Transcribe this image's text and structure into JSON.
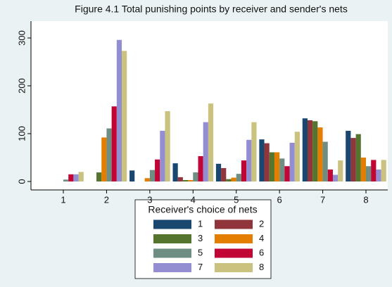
{
  "chart_data": {
    "type": "bar",
    "title": "Figure 4.1 Total punishing points by receiver and sender's nets",
    "categories": [
      "1",
      "2",
      "3",
      "4",
      "5",
      "6",
      "7",
      "8"
    ],
    "legend_title": "Receiver's choice of nets",
    "series": [
      {
        "name": "1",
        "color": "#1a476f",
        "values": [
          0,
          0,
          23,
          38,
          37,
          88,
          132,
          106
        ]
      },
      {
        "name": "2",
        "color": "#90353b",
        "values": [
          0,
          0,
          0,
          9,
          28,
          80,
          128,
          91
        ]
      },
      {
        "name": "3",
        "color": "#55752f",
        "values": [
          0,
          19,
          0,
          3,
          5,
          61,
          126,
          99
        ]
      },
      {
        "name": "4",
        "color": "#e37e00",
        "values": [
          0,
          92,
          7,
          3,
          8,
          61,
          113,
          50
        ]
      },
      {
        "name": "5",
        "color": "#6e8e84",
        "values": [
          4,
          111,
          24,
          19,
          16,
          48,
          83,
          32
        ]
      },
      {
        "name": "6",
        "color": "#c10534",
        "values": [
          15,
          157,
          46,
          53,
          44,
          32,
          25,
          45
        ]
      },
      {
        "name": "7",
        "color": "#938dd2",
        "values": [
          15,
          296,
          106,
          124,
          87,
          81,
          14,
          25
        ]
      },
      {
        "name": "8",
        "color": "#cac27e",
        "values": [
          20,
          273,
          147,
          163,
          124,
          104,
          44,
          45
        ]
      }
    ],
    "ylim": [
      0,
      300
    ],
    "yticks": [
      0,
      100,
      200,
      300
    ],
    "grid": false
  }
}
